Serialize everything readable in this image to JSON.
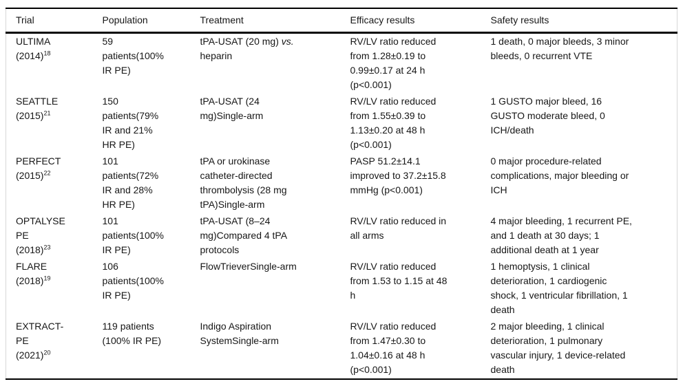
{
  "table": {
    "columns": [
      "Trial",
      "Population",
      "Treatment",
      "Efficacy results",
      "Safety results"
    ],
    "rows": [
      {
        "trial": "ULTIMA\n(2014)",
        "trial_ref": "18",
        "population": "59\npatients(100%\nIR PE)",
        "treatment_pre": "tPA-USAT (20 mg) ",
        "treatment_vs": "vs.",
        "treatment_post": "\nheparin",
        "efficacy": "RV/LV ratio reduced\nfrom 1.28±0.19 to\n0.99±0.17 at 24 h\n(p<0.001)",
        "safety": "1 death, 0 major bleeds, 3 minor\nbleeds, 0 recurrent VTE"
      },
      {
        "trial": "SEATTLE\n(2015)",
        "trial_ref": "21",
        "population": "150\npatients(79%\nIR and 21%\nHR PE)",
        "treatment": "tPA-USAT (24\nmg)Single-arm",
        "efficacy": "RV/LV ratio reduced\nfrom 1.55±0.39 to\n1.13±0.20 at 48 h\n(p<0.001)",
        "safety": "1 GUSTO major bleed, 16\nGUSTO moderate bleed, 0\nICH/death"
      },
      {
        "trial": "PERFECT\n(2015)",
        "trial_ref": "22",
        "population": "101\npatients(72%\nIR and 28%\nHR PE)",
        "treatment": "tPA or urokinase\ncatheter-directed\nthrombolysis (28 mg\ntPA)Single-arm",
        "efficacy": "PASP 51.2±14.1\nimproved to 37.2±15.8\nmmHg (p<0.001)",
        "safety": "0 major procedure-related\ncomplications, major bleeding or\nICH"
      },
      {
        "trial": "OPTALYSE\nPE\n(2018)",
        "trial_ref": "23",
        "population": "101\npatients(100%\nIR PE)",
        "treatment": "tPA-USAT (8–24\nmg)Compared 4 tPA\nprotocols",
        "efficacy": "RV/LV ratio reduced in\nall arms",
        "safety": "4 major bleeding, 1 recurrent PE,\nand 1 death at 30 days; 1\nadditional death at 1 year"
      },
      {
        "trial": "FLARE\n(2018)",
        "trial_ref": "19",
        "population": "106\npatients(100%\nIR PE)",
        "treatment": "FlowTrieverSingle-arm",
        "efficacy": "RV/LV ratio reduced\nfrom 1.53 to 1.15 at 48\nh",
        "safety": "1 hemoptysis, 1 clinical\ndeterioration, 1 cardiogenic\nshock, 1 ventricular fibrillation, 1\ndeath"
      },
      {
        "trial": "EXTRACT-\nPE\n(2021)",
        "trial_ref": "20",
        "population": "119 patients\n(100% IR PE)",
        "treatment": "Indigo Aspiration\nSystemSingle-arm",
        "efficacy": "RV/LV ratio reduced\nfrom 1.47±0.30 to\n1.04±0.16 at 48 h\n(p<0.001)",
        "safety": "2 major bleeding, 1 clinical\ndeterioration, 1 pulmonary\nvascular injury, 1 device-related\ndeath"
      }
    ]
  },
  "colors": {
    "rule": "#000000",
    "side_border": "#d6d6d6",
    "text": "#161616",
    "background": "#ffffff"
  }
}
